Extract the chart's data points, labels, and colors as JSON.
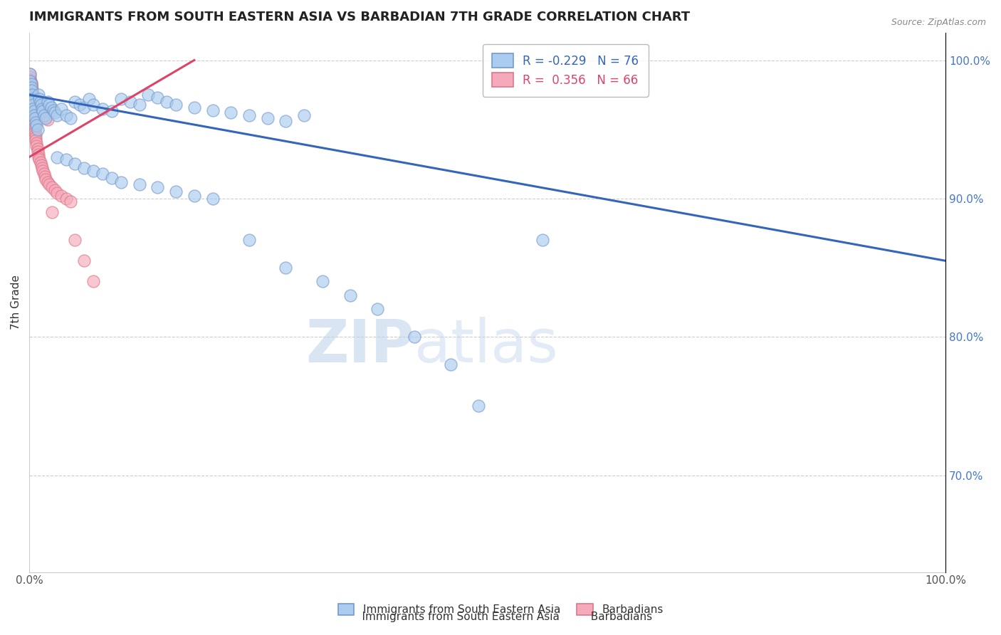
{
  "title": "IMMIGRANTS FROM SOUTH EASTERN ASIA VS BARBADIAN 7TH GRADE CORRELATION CHART",
  "source_text": "Source: ZipAtlas.com",
  "ylabel": "7th Grade",
  "watermark_zip": "ZIP",
  "watermark_atlas": "atlas",
  "blue_label": "Immigrants from South Eastern Asia",
  "pink_label": "Barbadians",
  "blue_R": -0.229,
  "blue_N": 76,
  "pink_R": 0.356,
  "pink_N": 66,
  "blue_color": "#aaccee",
  "blue_edge_color": "#7799cc",
  "pink_color": "#f5aabb",
  "pink_edge_color": "#dd7788",
  "blue_line_color": "#3366bb",
  "pink_line_color": "#dd4466",
  "grid_color": "#cccccc",
  "blue_x": [
    0.001,
    0.001,
    0.002,
    0.002,
    0.002,
    0.003,
    0.003,
    0.003,
    0.004,
    0.004,
    0.005,
    0.005,
    0.006,
    0.007,
    0.008,
    0.009,
    0.01,
    0.011,
    0.012,
    0.013,
    0.014,
    0.015,
    0.016,
    0.018,
    0.02,
    0.022,
    0.024,
    0.026,
    0.028,
    0.03,
    0.035,
    0.04,
    0.045,
    0.05,
    0.055,
    0.06,
    0.065,
    0.07,
    0.08,
    0.09,
    0.1,
    0.11,
    0.12,
    0.13,
    0.14,
    0.15,
    0.16,
    0.18,
    0.2,
    0.22,
    0.24,
    0.26,
    0.28,
    0.3,
    0.03,
    0.04,
    0.05,
    0.06,
    0.07,
    0.08,
    0.09,
    0.1,
    0.12,
    0.14,
    0.16,
    0.18,
    0.2,
    0.24,
    0.28,
    0.32,
    0.35,
    0.38,
    0.42,
    0.46,
    0.49,
    0.56
  ],
  "blue_y": [
    0.99,
    0.985,
    0.983,
    0.98,
    0.978,
    0.975,
    0.972,
    0.97,
    0.968,
    0.965,
    0.963,
    0.96,
    0.958,
    0.955,
    0.953,
    0.95,
    0.975,
    0.972,
    0.97,
    0.968,
    0.965,
    0.963,
    0.96,
    0.958,
    0.97,
    0.968,
    0.966,
    0.964,
    0.962,
    0.96,
    0.965,
    0.96,
    0.958,
    0.97,
    0.968,
    0.966,
    0.972,
    0.968,
    0.965,
    0.963,
    0.972,
    0.97,
    0.968,
    0.975,
    0.973,
    0.97,
    0.968,
    0.966,
    0.964,
    0.962,
    0.96,
    0.958,
    0.956,
    0.96,
    0.93,
    0.928,
    0.925,
    0.922,
    0.92,
    0.918,
    0.915,
    0.912,
    0.91,
    0.908,
    0.905,
    0.902,
    0.9,
    0.87,
    0.85,
    0.84,
    0.83,
    0.82,
    0.8,
    0.78,
    0.75,
    0.87
  ],
  "pink_x": [
    0.001,
    0.001,
    0.001,
    0.002,
    0.002,
    0.002,
    0.002,
    0.003,
    0.003,
    0.003,
    0.003,
    0.003,
    0.004,
    0.004,
    0.004,
    0.004,
    0.005,
    0.005,
    0.005,
    0.006,
    0.006,
    0.006,
    0.007,
    0.007,
    0.007,
    0.008,
    0.008,
    0.009,
    0.009,
    0.01,
    0.01,
    0.011,
    0.012,
    0.013,
    0.014,
    0.015,
    0.016,
    0.017,
    0.018,
    0.02,
    0.022,
    0.025,
    0.028,
    0.03,
    0.035,
    0.04,
    0.045,
    0.05,
    0.06,
    0.07,
    0.001,
    0.002,
    0.002,
    0.003,
    0.003,
    0.004,
    0.005,
    0.006,
    0.007,
    0.008,
    0.01,
    0.012,
    0.015,
    0.018,
    0.02,
    0.025
  ],
  "pink_y": [
    0.99,
    0.988,
    0.986,
    0.984,
    0.982,
    0.98,
    0.978,
    0.976,
    0.974,
    0.972,
    0.97,
    0.968,
    0.966,
    0.964,
    0.962,
    0.96,
    0.958,
    0.956,
    0.954,
    0.952,
    0.95,
    0.948,
    0.946,
    0.944,
    0.942,
    0.94,
    0.938,
    0.936,
    0.934,
    0.932,
    0.93,
    0.928,
    0.926,
    0.924,
    0.922,
    0.92,
    0.918,
    0.916,
    0.914,
    0.912,
    0.91,
    0.908,
    0.906,
    0.904,
    0.902,
    0.9,
    0.898,
    0.87,
    0.855,
    0.84,
    0.985,
    0.983,
    0.981,
    0.979,
    0.977,
    0.975,
    0.973,
    0.971,
    0.969,
    0.967,
    0.965,
    0.963,
    0.961,
    0.959,
    0.957,
    0.89
  ],
  "xlim": [
    0.0,
    1.0
  ],
  "ylim": [
    0.63,
    1.02
  ],
  "blue_trend_x": [
    0.0,
    1.0
  ],
  "blue_trend_y": [
    0.975,
    0.855
  ],
  "pink_trend_x": [
    0.0,
    0.18
  ],
  "pink_trend_y": [
    0.93,
    1.0
  ]
}
